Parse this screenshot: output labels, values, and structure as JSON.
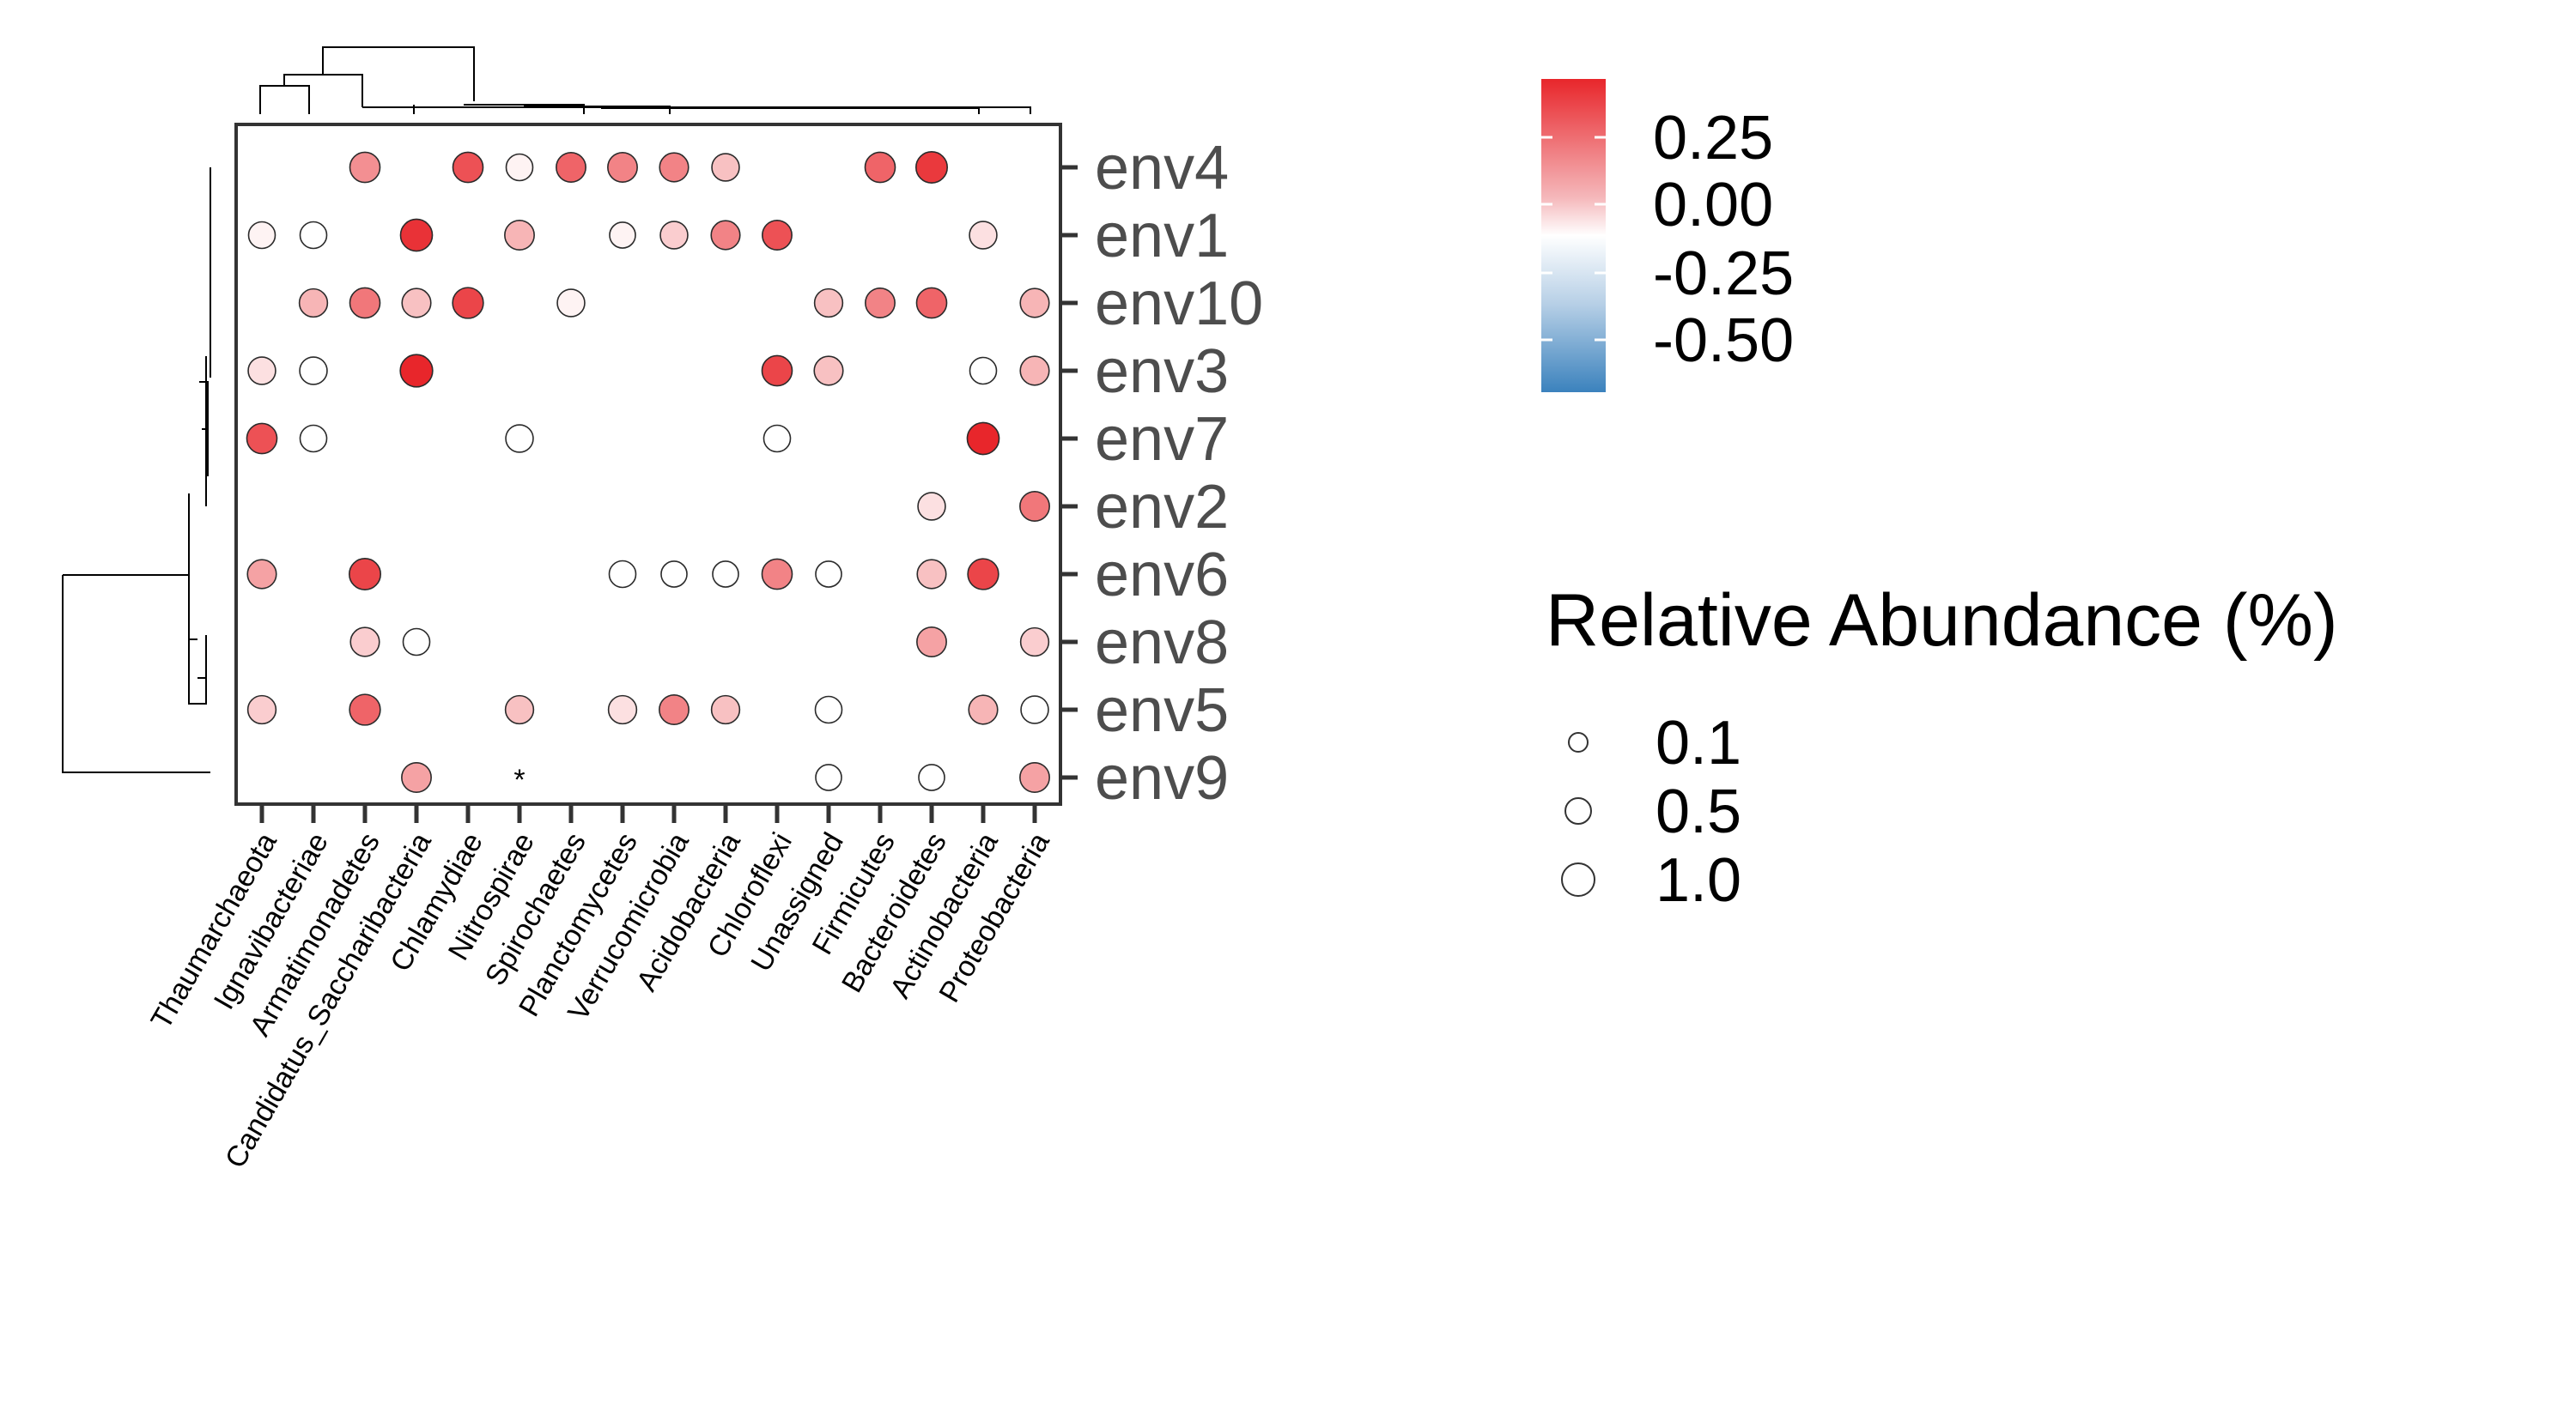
{
  "chart_data": {
    "type": "scatter",
    "subtype": "dot-heatmap with dendrograms",
    "x_categories": [
      "Thaumarchaeota",
      "Ignavibacteriae",
      "Armatimonadetes",
      "Candidatus_Saccharibacteria",
      "Chlamydiae",
      "Nitrospirae",
      "Spirochaetes",
      "Planctomycetes",
      "Verrucomicrobia",
      "Acidobacteria",
      "Chloroflexi",
      "Unassigned",
      "Firmicutes",
      "Bacteroidetes",
      "Actinobacteria",
      "Proteobacteria"
    ],
    "y_categories": [
      "env4",
      "env1",
      "env10",
      "env3",
      "env7",
      "env2",
      "env6",
      "env8",
      "env5",
      "env9"
    ],
    "points": [
      {
        "x": "Armatimonadetes",
        "y": "env4",
        "color_value": 0.18,
        "size": 0.6
      },
      {
        "x": "Chlamydiae",
        "y": "env4",
        "color_value": 0.28,
        "size": 0.6
      },
      {
        "x": "Nitrospirae",
        "y": "env4",
        "color_value": 0.02,
        "size": 0.35
      },
      {
        "x": "Spirochaetes",
        "y": "env4",
        "color_value": 0.25,
        "size": 0.55
      },
      {
        "x": "Planctomycetes",
        "y": "env4",
        "color_value": 0.2,
        "size": 0.55
      },
      {
        "x": "Verrucomicrobia",
        "y": "env4",
        "color_value": 0.2,
        "size": 0.5
      },
      {
        "x": "Acidobacteria",
        "y": "env4",
        "color_value": 0.1,
        "size": 0.4
      },
      {
        "x": "Firmicutes",
        "y": "env4",
        "color_value": 0.25,
        "size": 0.6
      },
      {
        "x": "Bacteroidetes",
        "y": "env4",
        "color_value": 0.32,
        "size": 0.7
      },
      {
        "x": "Thaumarchaeota",
        "y": "env1",
        "color_value": 0.02,
        "size": 0.35
      },
      {
        "x": "Ignavibacteriae",
        "y": "env1",
        "color_value": 0.0,
        "size": 0.35
      },
      {
        "x": "Candidatus_Saccharibacteria",
        "y": "env1",
        "color_value": 0.33,
        "size": 0.75
      },
      {
        "x": "Nitrospirae",
        "y": "env1",
        "color_value": 0.12,
        "size": 0.55
      },
      {
        "x": "Planctomycetes",
        "y": "env1",
        "color_value": 0.02,
        "size": 0.3
      },
      {
        "x": "Verrucomicrobia",
        "y": "env1",
        "color_value": 0.08,
        "size": 0.4
      },
      {
        "x": "Acidobacteria",
        "y": "env1",
        "color_value": 0.2,
        "size": 0.5
      },
      {
        "x": "Chloroflexi",
        "y": "env1",
        "color_value": 0.28,
        "size": 0.55
      },
      {
        "x": "Actinobacteria",
        "y": "env1",
        "color_value": 0.05,
        "size": 0.4
      },
      {
        "x": "Ignavibacteriae",
        "y": "env10",
        "color_value": 0.12,
        "size": 0.45
      },
      {
        "x": "Armatimonadetes",
        "y": "env10",
        "color_value": 0.22,
        "size": 0.6
      },
      {
        "x": "Candidatus_Saccharibacteria",
        "y": "env10",
        "color_value": 0.1,
        "size": 0.5
      },
      {
        "x": "Chlamydiae",
        "y": "env10",
        "color_value": 0.3,
        "size": 0.65
      },
      {
        "x": "Spirochaetes",
        "y": "env10",
        "color_value": 0.02,
        "size": 0.4
      },
      {
        "x": "Unassigned",
        "y": "env10",
        "color_value": 0.1,
        "size": 0.45
      },
      {
        "x": "Firmicutes",
        "y": "env10",
        "color_value": 0.2,
        "size": 0.55
      },
      {
        "x": "Bacteroidetes",
        "y": "env10",
        "color_value": 0.25,
        "size": 0.6
      },
      {
        "x": "Proteobacteria",
        "y": "env10",
        "color_value": 0.12,
        "size": 0.5
      },
      {
        "x": "Thaumarchaeota",
        "y": "env3",
        "color_value": 0.05,
        "size": 0.4
      },
      {
        "x": "Ignavibacteriae",
        "y": "env3",
        "color_value": 0.0,
        "size": 0.4
      },
      {
        "x": "Candidatus_Saccharibacteria",
        "y": "env3",
        "color_value": 0.38,
        "size": 0.8
      },
      {
        "x": "Chloroflexi",
        "y": "env3",
        "color_value": 0.3,
        "size": 0.6
      },
      {
        "x": "Unassigned",
        "y": "env3",
        "color_value": 0.1,
        "size": 0.5
      },
      {
        "x": "Actinobacteria",
        "y": "env3",
        "color_value": 0.0,
        "size": 0.35
      },
      {
        "x": "Proteobacteria",
        "y": "env3",
        "color_value": 0.12,
        "size": 0.5
      },
      {
        "x": "Thaumarchaeota",
        "y": "env7",
        "color_value": 0.28,
        "size": 0.6
      },
      {
        "x": "Ignavibacteriae",
        "y": "env7",
        "color_value": 0.0,
        "size": 0.35
      },
      {
        "x": "Nitrospirae",
        "y": "env7",
        "color_value": 0.0,
        "size": 0.4
      },
      {
        "x": "Chloroflexi",
        "y": "env7",
        "color_value": 0.0,
        "size": 0.35
      },
      {
        "x": "Actinobacteria",
        "y": "env7",
        "color_value": 0.38,
        "size": 0.75
      },
      {
        "x": "Bacteroidetes",
        "y": "env2",
        "color_value": 0.05,
        "size": 0.4
      },
      {
        "x": "Proteobacteria",
        "y": "env2",
        "color_value": 0.22,
        "size": 0.55
      },
      {
        "x": "Thaumarchaeota",
        "y": "env6",
        "color_value": 0.15,
        "size": 0.5
      },
      {
        "x": "Armatimonadetes",
        "y": "env6",
        "color_value": 0.3,
        "size": 0.7
      },
      {
        "x": "Planctomycetes",
        "y": "env6",
        "color_value": 0.0,
        "size": 0.35
      },
      {
        "x": "Verrucomicrobia",
        "y": "env6",
        "color_value": 0.0,
        "size": 0.3
      },
      {
        "x": "Acidobacteria",
        "y": "env6",
        "color_value": 0.0,
        "size": 0.3
      },
      {
        "x": "Chloroflexi",
        "y": "env6",
        "color_value": 0.2,
        "size": 0.6
      },
      {
        "x": "Unassigned",
        "y": "env6",
        "color_value": 0.0,
        "size": 0.3
      },
      {
        "x": "Bacteroidetes",
        "y": "env6",
        "color_value": 0.1,
        "size": 0.5
      },
      {
        "x": "Actinobacteria",
        "y": "env6",
        "color_value": 0.3,
        "size": 0.65
      },
      {
        "x": "Armatimonadetes",
        "y": "env8",
        "color_value": 0.08,
        "size": 0.5
      },
      {
        "x": "Candidatus_Saccharibacteria",
        "y": "env8",
        "color_value": 0.0,
        "size": 0.35
      },
      {
        "x": "Bacteroidetes",
        "y": "env8",
        "color_value": 0.15,
        "size": 0.55
      },
      {
        "x": "Proteobacteria",
        "y": "env8",
        "color_value": 0.08,
        "size": 0.45
      },
      {
        "x": "Thaumarchaeota",
        "y": "env5",
        "color_value": 0.08,
        "size": 0.45
      },
      {
        "x": "Armatimonadetes",
        "y": "env5",
        "color_value": 0.25,
        "size": 0.65
      },
      {
        "x": "Nitrospirae",
        "y": "env5",
        "color_value": 0.1,
        "size": 0.45
      },
      {
        "x": "Planctomycetes",
        "y": "env5",
        "color_value": 0.05,
        "size": 0.45
      },
      {
        "x": "Verrucomicrobia",
        "y": "env5",
        "color_value": 0.2,
        "size": 0.55
      },
      {
        "x": "Acidobacteria",
        "y": "env5",
        "color_value": 0.1,
        "size": 0.45
      },
      {
        "x": "Unassigned",
        "y": "env5",
        "color_value": 0.0,
        "size": 0.35
      },
      {
        "x": "Actinobacteria",
        "y": "env5",
        "color_value": 0.12,
        "size": 0.5
      },
      {
        "x": "Proteobacteria",
        "y": "env5",
        "color_value": 0.0,
        "size": 0.4
      },
      {
        "x": "Candidatus_Saccharibacteria",
        "y": "env9",
        "color_value": 0.15,
        "size": 0.55
      },
      {
        "x": "Unassigned",
        "y": "env9",
        "color_value": 0.0,
        "size": 0.3
      },
      {
        "x": "Bacteroidetes",
        "y": "env9",
        "color_value": 0.0,
        "size": 0.3
      },
      {
        "x": "Proteobacteria",
        "y": "env9",
        "color_value": 0.15,
        "size": 0.55
      }
    ],
    "annotations": [
      {
        "x": "Nitrospirae",
        "y": "env9",
        "text": "*"
      }
    ],
    "color_legend": {
      "ticks": [
        "0.25",
        "0.00",
        "-0.25",
        "-0.50"
      ],
      "range": [
        -0.55,
        0.35
      ],
      "colors": {
        "high": "#e8262b",
        "mid": "#ffffff",
        "low": "#3b82bd"
      }
    },
    "size_legend": {
      "title": "Relative Abundance (%)",
      "entries": [
        "0.1",
        "0.5",
        "1.0"
      ]
    },
    "grid": false,
    "legend_placement": "right"
  }
}
